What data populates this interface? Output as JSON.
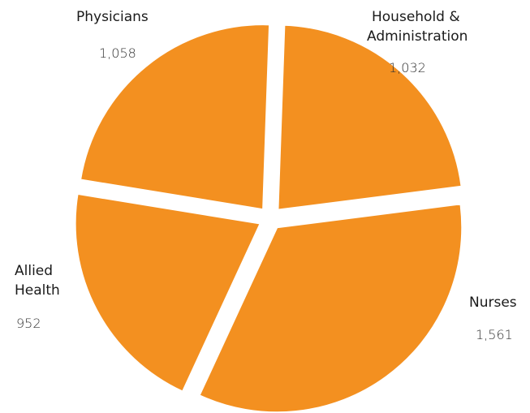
{
  "chart_data": {
    "type": "pie",
    "title": "",
    "slices": [
      {
        "label": "Household & Administration",
        "label_lines": [
          "Household &",
          "Administration"
        ],
        "value": 1032,
        "value_text": "1,032"
      },
      {
        "label": "Nurses",
        "label_lines": [
          "Nurses"
        ],
        "value": 1561,
        "value_text": "1,561"
      },
      {
        "label": "Allied Health",
        "label_lines": [
          "Allied",
          "Health"
        ],
        "value": 952,
        "value_text": "952"
      },
      {
        "label": "Physicians",
        "label_lines": [
          "Physicians"
        ],
        "value": 1058,
        "value_text": "1,058"
      }
    ],
    "exploded": true,
    "colors": {
      "slice": "#f39020",
      "background": "#ffffff",
      "text": "#1a1a1a"
    }
  }
}
